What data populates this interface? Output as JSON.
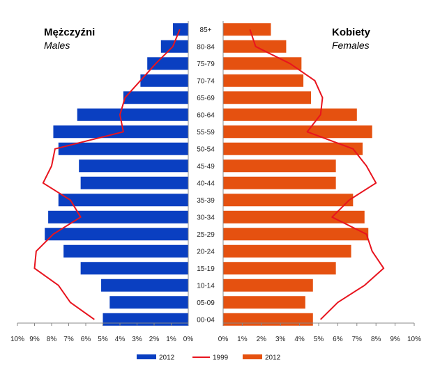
{
  "chart_data": {
    "type": "bar",
    "orientation": "horizontal-population-pyramid",
    "categories": [
      "85+",
      "80-84",
      "75-79",
      "70-74",
      "65-69",
      "60-64",
      "55-59",
      "50-54",
      "45-49",
      "40-44",
      "35-39",
      "30-34",
      "25-29",
      "20-24",
      "15-19",
      "10-14",
      "05-09",
      "00-04"
    ],
    "left_panel": {
      "title": "Mężczyźni",
      "subtitle": "Males",
      "bars_2012": [
        0.9,
        1.6,
        2.4,
        2.8,
        3.8,
        6.5,
        7.9,
        7.6,
        6.4,
        6.3,
        7.6,
        8.2,
        8.4,
        7.3,
        6.3,
        5.1,
        4.6,
        5.0
      ],
      "line_1999": [
        0.5,
        0.9,
        1.9,
        2.8,
        3.7,
        4.0,
        3.8,
        7.8,
        8.0,
        8.5,
        6.9,
        6.3,
        7.9,
        8.9,
        9.0,
        7.6,
        6.9,
        5.5
      ]
    },
    "right_panel": {
      "title": "Kobiety",
      "subtitle": "Females",
      "bars_2012": [
        2.5,
        3.3,
        4.1,
        4.2,
        4.6,
        7.0,
        7.8,
        7.3,
        5.9,
        5.9,
        6.8,
        7.4,
        7.6,
        6.7,
        5.9,
        4.7,
        4.3,
        4.7
      ],
      "line_1999": [
        1.4,
        1.7,
        3.5,
        4.8,
        5.2,
        5.1,
        4.4,
        6.8,
        7.5,
        8.0,
        6.6,
        5.7,
        7.5,
        7.8,
        8.4,
        7.4,
        6.0,
        5.1
      ]
    },
    "x_axis": {
      "ticks_left": [
        "10%",
        "9%",
        "8%",
        "7%",
        "6%",
        "5%",
        "4%",
        "3%",
        "2%",
        "1%",
        "0%"
      ],
      "ticks_right": [
        "0%",
        "1%",
        "2%",
        "3%",
        "4%",
        "5%",
        "6%",
        "7%",
        "8%",
        "9%",
        "10%"
      ],
      "xlim": [
        0,
        10
      ]
    },
    "legend": [
      {
        "label": "2012",
        "marker": "bar",
        "color": "#0a3fc1"
      },
      {
        "label": "1999",
        "marker": "line",
        "color": "#e8141e"
      },
      {
        "label": "2012",
        "marker": "bar",
        "color": "#e55110"
      }
    ],
    "legend_position": "bottom",
    "grid": false
  },
  "colors": {
    "male_bar": "#0a3fc1",
    "female_bar": "#e55110",
    "line_1999": "#e8141e"
  }
}
